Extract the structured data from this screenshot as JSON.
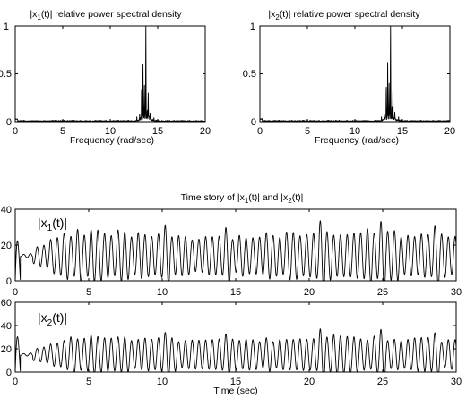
{
  "chart_data": [
    {
      "type": "line",
      "title": "|x1(t)| relative power spectral density",
      "title_parts": {
        "pre": "|x",
        "sub": "1",
        "post": "(t)| relative power spectral density"
      },
      "xlabel": "Frequency (rad/sec)",
      "ylabel": "",
      "xlim": [
        0,
        20
      ],
      "ylim": [
        0,
        1
      ],
      "xticks": [
        "0",
        "5",
        "10",
        "15",
        "20"
      ],
      "yticks": [
        "0",
        "0.5",
        "1"
      ],
      "peaks": [
        {
          "x": 12.8,
          "y": 0.05
        },
        {
          "x": 13.1,
          "y": 0.08
        },
        {
          "x": 13.3,
          "y": 0.33
        },
        {
          "x": 13.45,
          "y": 0.6
        },
        {
          "x": 13.6,
          "y": 0.38
        },
        {
          "x": 13.75,
          "y": 1.0
        },
        {
          "x": 13.9,
          "y": 0.12
        },
        {
          "x": 14.0,
          "y": 0.3
        },
        {
          "x": 14.2,
          "y": 0.09
        },
        {
          "x": 14.6,
          "y": 0.04
        }
      ],
      "grid": false,
      "legend": "none"
    },
    {
      "type": "line",
      "title": "|x2(t)| relative power spectral density",
      "title_parts": {
        "pre": "|x",
        "sub": "2",
        "post": "(t)| relative power spectral density"
      },
      "xlabel": "Frequency (rad/sec)",
      "ylabel": "",
      "xlim": [
        0,
        20
      ],
      "ylim": [
        0,
        1
      ],
      "xticks": [
        "0",
        "5",
        "10",
        "15",
        "20"
      ],
      "yticks": [
        "0",
        "0.5",
        "1"
      ],
      "peaks": [
        {
          "x": 12.8,
          "y": 0.05
        },
        {
          "x": 13.1,
          "y": 0.07
        },
        {
          "x": 13.3,
          "y": 0.36
        },
        {
          "x": 13.45,
          "y": 0.62
        },
        {
          "x": 13.6,
          "y": 0.4
        },
        {
          "x": 13.75,
          "y": 1.0
        },
        {
          "x": 13.9,
          "y": 0.15
        },
        {
          "x": 14.0,
          "y": 0.32
        },
        {
          "x": 14.2,
          "y": 0.1
        },
        {
          "x": 14.6,
          "y": 0.05
        }
      ],
      "grid": false,
      "legend": "none"
    },
    {
      "type": "line",
      "title": "Time story of |x1(t)| and |x2(t)|",
      "title_parts": {
        "a": "Time story of |x",
        "s1": "1",
        "b": "(t)| and |x",
        "s2": "2",
        "c": "(t)|"
      },
      "label_parts": {
        "pre": "|x",
        "sub": "1",
        "post": "(t)|"
      },
      "xlabel": "",
      "ylabel": "",
      "xlim": [
        0,
        30
      ],
      "ylim": [
        0,
        40
      ],
      "xticks": [
        "0",
        "5",
        "10",
        "15",
        "20",
        "25",
        "30"
      ],
      "yticks": [
        "0",
        "20",
        "40"
      ],
      "signal": {
        "omega": 13.7,
        "base": 14,
        "osc_amp": 11.5,
        "initial_peak": 31
      },
      "grid": false,
      "legend": "none"
    },
    {
      "type": "line",
      "title": "",
      "label_parts": {
        "pre": "|x",
        "sub": "2",
        "post": "(t)|"
      },
      "xlabel": "Time (sec)",
      "ylabel": "",
      "xlim": [
        0,
        30
      ],
      "ylim": [
        0,
        60
      ],
      "xticks": [
        "0",
        "5",
        "10",
        "15",
        "20",
        "25",
        "30"
      ],
      "yticks": [
        "0",
        "20",
        "40",
        "60"
      ],
      "signal": {
        "omega": 13.7,
        "base": 15,
        "osc_amp": 13,
        "initial_peak": 42
      },
      "grid": false,
      "legend": "none"
    }
  ]
}
